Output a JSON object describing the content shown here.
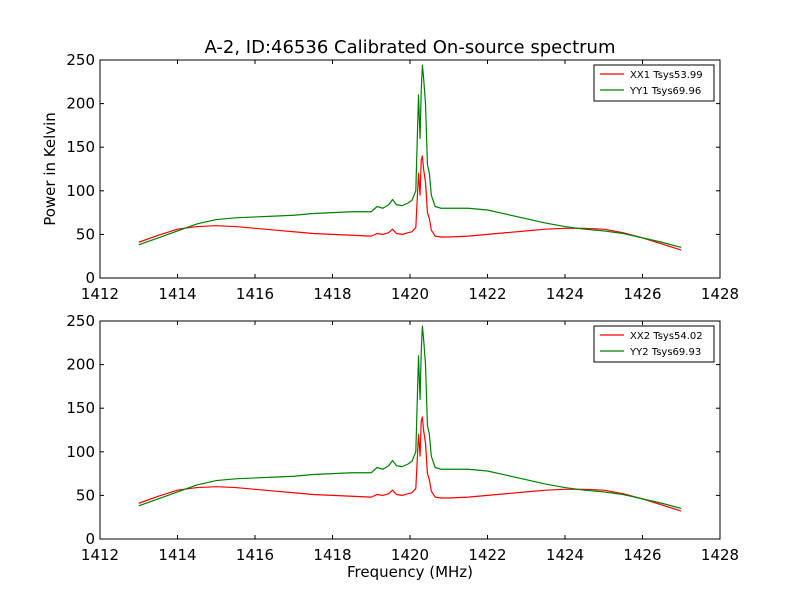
{
  "chart_data": [
    {
      "type": "line",
      "title": "A-2, ID:46536 Calibrated On-source spectrum",
      "xlabel": "",
      "ylabel": "Power in Kelvin",
      "xlim": [
        1412,
        1428
      ],
      "ylim": [
        0,
        250
      ],
      "xticks": [
        1412,
        1414,
        1416,
        1418,
        1420,
        1422,
        1424,
        1426,
        1428
      ],
      "yticks": [
        0,
        50,
        100,
        150,
        200,
        250
      ],
      "grid": false,
      "legend_position": "top-right",
      "series": [
        {
          "name": "XX1 Tsys53.99",
          "color": "#ff0000",
          "x": [
            1413.0,
            1413.5,
            1414.0,
            1414.5,
            1415.0,
            1415.5,
            1416.0,
            1416.5,
            1417.0,
            1417.5,
            1418.0,
            1418.5,
            1419.0,
            1419.15,
            1419.3,
            1419.45,
            1419.55,
            1419.65,
            1419.8,
            1419.95,
            1420.05,
            1420.15,
            1420.22,
            1420.26,
            1420.29,
            1420.32,
            1420.35,
            1420.4,
            1420.45,
            1420.5,
            1420.55,
            1420.65,
            1420.8,
            1421.0,
            1421.5,
            1422.0,
            1422.5,
            1423.0,
            1423.5,
            1424.0,
            1424.5,
            1425.0,
            1425.5,
            1426.0,
            1426.5,
            1427.0
          ],
          "y": [
            41,
            49,
            56,
            59,
            60,
            59,
            57,
            55,
            53,
            51,
            50,
            49,
            48,
            51,
            50,
            52,
            56,
            51,
            50,
            52,
            53,
            58,
            120,
            95,
            135,
            140,
            125,
            110,
            75,
            68,
            55,
            48,
            47,
            47,
            48,
            50,
            52,
            54,
            56,
            57,
            57,
            56,
            52,
            46,
            39,
            32
          ]
        },
        {
          "name": "YY1 Tsys69.96",
          "color": "#008000",
          "x": [
            1413.0,
            1413.5,
            1414.0,
            1414.5,
            1415.0,
            1415.5,
            1416.0,
            1416.5,
            1417.0,
            1417.5,
            1418.0,
            1418.5,
            1419.0,
            1419.15,
            1419.3,
            1419.45,
            1419.55,
            1419.65,
            1419.8,
            1419.95,
            1420.05,
            1420.15,
            1420.22,
            1420.26,
            1420.29,
            1420.32,
            1420.35,
            1420.4,
            1420.45,
            1420.5,
            1420.55,
            1420.65,
            1420.8,
            1421.0,
            1421.5,
            1422.0,
            1422.5,
            1423.0,
            1423.5,
            1424.0,
            1424.5,
            1425.0,
            1425.5,
            1426.0,
            1426.5,
            1427.0
          ],
          "y": [
            38,
            46,
            54,
            62,
            67,
            69,
            70,
            71,
            72,
            74,
            75,
            76,
            76,
            82,
            80,
            84,
            90,
            84,
            83,
            86,
            89,
            100,
            210,
            160,
            215,
            244,
            230,
            200,
            130,
            120,
            95,
            82,
            80,
            80,
            80,
            78,
            73,
            68,
            63,
            59,
            56,
            54,
            51,
            46,
            41,
            35
          ]
        }
      ]
    },
    {
      "type": "line",
      "title": "",
      "xlabel": "Frequency (MHz)",
      "ylabel": "",
      "xlim": [
        1412,
        1428
      ],
      "ylim": [
        0,
        250
      ],
      "xticks": [
        1412,
        1414,
        1416,
        1418,
        1420,
        1422,
        1424,
        1426,
        1428
      ],
      "yticks": [
        0,
        50,
        100,
        150,
        200,
        250
      ],
      "grid": false,
      "legend_position": "top-right",
      "series": [
        {
          "name": "XX2 Tsys54.02",
          "color": "#ff0000",
          "x": [
            1413.0,
            1413.5,
            1414.0,
            1414.5,
            1415.0,
            1415.5,
            1416.0,
            1416.5,
            1417.0,
            1417.5,
            1418.0,
            1418.5,
            1419.0,
            1419.15,
            1419.3,
            1419.45,
            1419.55,
            1419.65,
            1419.8,
            1419.95,
            1420.05,
            1420.15,
            1420.22,
            1420.26,
            1420.29,
            1420.32,
            1420.35,
            1420.4,
            1420.45,
            1420.5,
            1420.55,
            1420.65,
            1420.8,
            1421.0,
            1421.5,
            1422.0,
            1422.5,
            1423.0,
            1423.5,
            1424.0,
            1424.5,
            1425.0,
            1425.5,
            1426.0,
            1426.5,
            1427.0
          ],
          "y": [
            41,
            49,
            56,
            59,
            60,
            59,
            57,
            55,
            53,
            51,
            50,
            49,
            48,
            51,
            50,
            52,
            56,
            51,
            50,
            52,
            53,
            58,
            120,
            95,
            135,
            140,
            125,
            110,
            75,
            68,
            55,
            48,
            47,
            47,
            48,
            50,
            52,
            54,
            56,
            57,
            57,
            56,
            52,
            46,
            39,
            32
          ]
        },
        {
          "name": "YY2 Tsys69.93",
          "color": "#008000",
          "x": [
            1413.0,
            1413.5,
            1414.0,
            1414.5,
            1415.0,
            1415.5,
            1416.0,
            1416.5,
            1417.0,
            1417.5,
            1418.0,
            1418.5,
            1419.0,
            1419.15,
            1419.3,
            1419.45,
            1419.55,
            1419.65,
            1419.8,
            1419.95,
            1420.05,
            1420.15,
            1420.22,
            1420.26,
            1420.29,
            1420.32,
            1420.35,
            1420.4,
            1420.45,
            1420.5,
            1420.55,
            1420.65,
            1420.8,
            1421.0,
            1421.5,
            1422.0,
            1422.5,
            1423.0,
            1423.5,
            1424.0,
            1424.5,
            1425.0,
            1425.5,
            1426.0,
            1426.5,
            1427.0
          ],
          "y": [
            38,
            46,
            54,
            62,
            67,
            69,
            70,
            71,
            72,
            74,
            75,
            76,
            76,
            82,
            80,
            84,
            90,
            84,
            83,
            86,
            89,
            100,
            210,
            160,
            215,
            244,
            230,
            200,
            130,
            120,
            95,
            82,
            80,
            80,
            80,
            78,
            73,
            68,
            63,
            59,
            56,
            54,
            51,
            46,
            41,
            35
          ]
        }
      ]
    }
  ]
}
